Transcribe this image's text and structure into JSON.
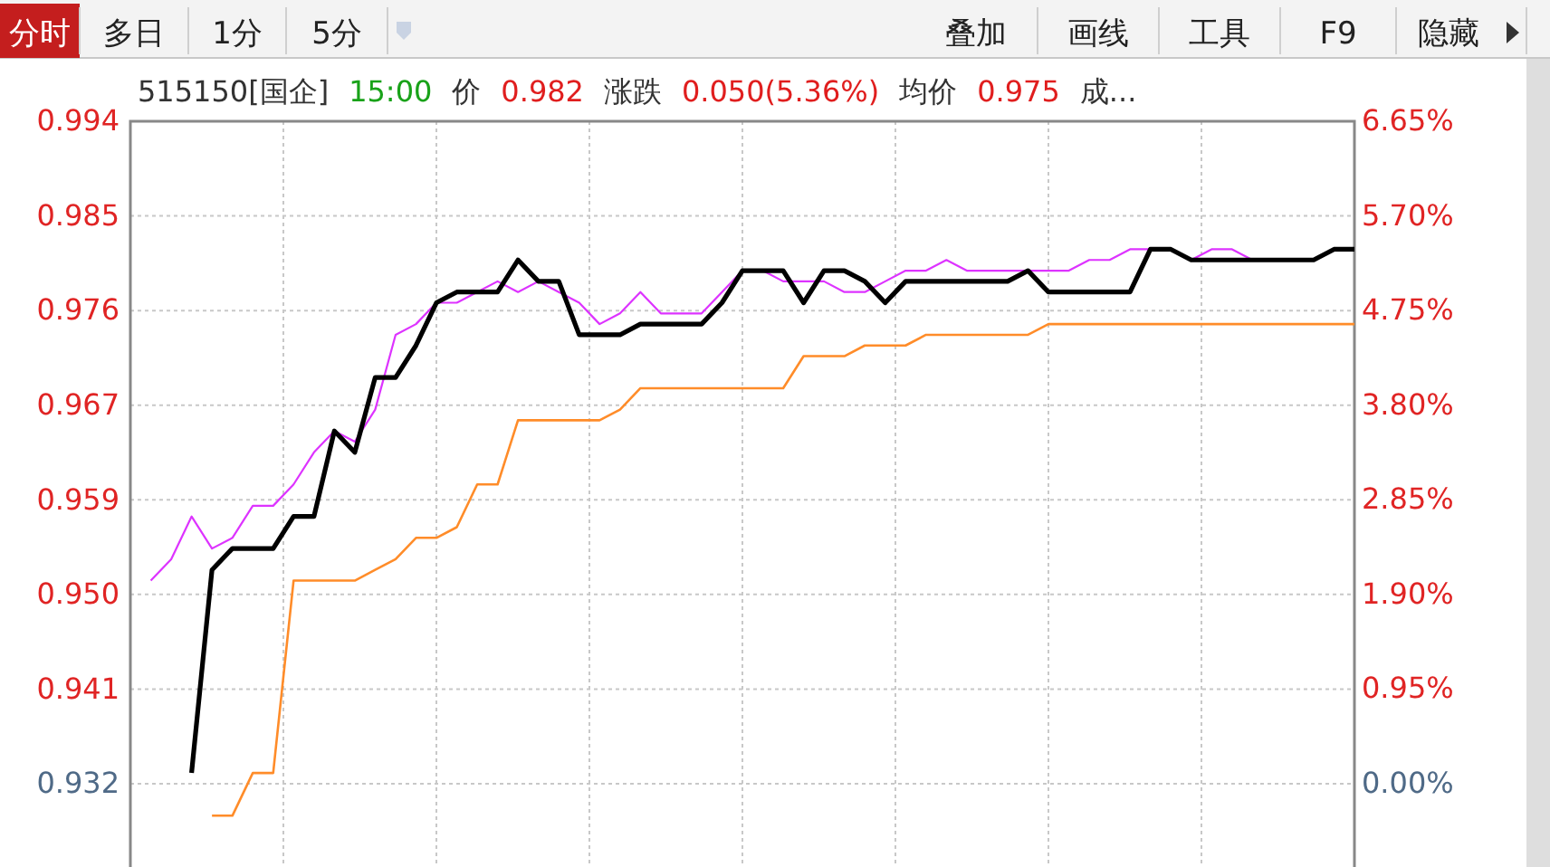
{
  "chart_data": {
    "type": "line",
    "annotations": [
      "分时",
      "多日",
      "1分",
      "5分",
      "叠加",
      "画线",
      "工具",
      "F9",
      "隐藏",
      "515150[国企]",
      "15:00",
      "价",
      "0.982",
      "涨跌",
      "0.050(5.36%)",
      "均价",
      "0.975",
      "成..."
    ],
    "categories": [
      null,
      null,
      null,
      null,
      null,
      null,
      null,
      null,
      null,
      null,
      null,
      null,
      null,
      null,
      null,
      null,
      null,
      null,
      null,
      null,
      null,
      null,
      null,
      null,
      null,
      null,
      null,
      null,
      null,
      null,
      null,
      null,
      null,
      null,
      null,
      null,
      null,
      null,
      null,
      null,
      null,
      null,
      null,
      null,
      null,
      null,
      null,
      null,
      null,
      null,
      null,
      null,
      null,
      null,
      null,
      null,
      null,
      null,
      null,
      null,
      null
    ],
    "series": [
      {
        "color": "#ff8c29",
        "values": [
          null,
          null,
          null,
          null,
          0.929,
          0.929,
          0.933,
          0.933,
          0.951,
          0.951,
          0.951,
          0.951,
          0.952,
          0.953,
          0.955,
          0.955,
          0.956,
          0.96,
          0.96,
          0.966,
          0.966,
          0.966,
          0.966,
          0.966,
          0.967,
          0.969,
          0.969,
          0.969,
          0.969,
          0.969,
          0.969,
          0.969,
          0.969,
          0.972,
          0.972,
          0.972,
          0.973,
          0.973,
          0.973,
          0.974,
          0.974,
          0.974,
          0.974,
          0.974,
          0.974,
          0.975,
          0.975,
          0.975,
          0.975,
          0.975,
          0.975,
          0.975,
          0.975,
          0.975,
          0.975,
          0.975,
          0.975,
          0.975,
          0.975,
          0.975,
          0.975
        ]
      },
      {
        "color": "#dd33ff",
        "values": [
          null,
          0.951,
          0.953,
          0.957,
          0.954,
          0.955,
          0.958,
          0.958,
          0.96,
          0.963,
          0.965,
          0.964,
          0.967,
          0.974,
          0.975,
          0.977,
          0.977,
          0.978,
          0.979,
          0.978,
          0.979,
          0.978,
          0.977,
          0.975,
          0.976,
          0.978,
          0.976,
          0.976,
          0.976,
          0.978,
          0.98,
          0.98,
          0.979,
          0.979,
          0.979,
          0.978,
          0.978,
          0.979,
          0.98,
          0.98,
          0.981,
          0.98,
          0.98,
          0.98,
          0.98,
          0.98,
          0.98,
          0.981,
          0.981,
          0.982,
          0.982,
          null,
          0.981,
          0.982,
          0.982,
          0.981,
          null,
          null,
          null,
          null,
          null
        ]
      },
      {
        "color": "#000000",
        "values": [
          null,
          null,
          null,
          0.933,
          0.952,
          0.954,
          0.954,
          0.954,
          0.957,
          0.957,
          0.965,
          0.963,
          0.97,
          0.97,
          0.973,
          0.977,
          0.978,
          0.978,
          0.978,
          0.981,
          0.979,
          0.979,
          0.974,
          0.974,
          0.974,
          0.975,
          0.975,
          0.975,
          0.975,
          0.977,
          0.98,
          0.98,
          0.98,
          0.977,
          0.98,
          0.98,
          0.979,
          0.977,
          0.979,
          0.979,
          0.979,
          0.979,
          0.979,
          0.979,
          0.98,
          0.978,
          0.978,
          0.978,
          0.978,
          0.978,
          0.982,
          0.982,
          0.981,
          0.981,
          0.981,
          0.981,
          0.981,
          0.981,
          0.981,
          0.982,
          0.982
        ]
      }
    ],
    "ylim": [
      0.9242,
      0.99398
    ],
    "yticks": [
      {
        "value": 0.932,
        "label": "0.932"
      },
      {
        "value": 0.94085,
        "label": "0.941"
      },
      {
        "value": 0.94971,
        "label": "0.950"
      },
      {
        "value": 0.95856,
        "label": "0.959"
      },
      {
        "value": 0.96741,
        "label": "0.967"
      },
      {
        "value": 0.97627,
        "label": "0.976"
      },
      {
        "value": 0.98512,
        "label": "0.985"
      },
      {
        "value": 0.99398,
        "label": "0.994"
      }
    ],
    "y2lim": [
      -0.84,
      6.65
    ],
    "y2ticks": [
      {
        "value": 0,
        "label": "0.00%"
      },
      {
        "value": 0.95,
        "label": "0.95%"
      },
      {
        "value": 1.9,
        "label": "1.90%"
      },
      {
        "value": 2.85,
        "label": "2.85%"
      },
      {
        "value": 3.8,
        "label": "3.80%"
      },
      {
        "value": 4.75,
        "label": "4.75%"
      },
      {
        "value": 5.7,
        "label": "5.70%"
      },
      {
        "value": 6.65,
        "label": "6.65%"
      }
    ],
    "grid": true,
    "marker": "none",
    "line_style": "solid"
  }
}
